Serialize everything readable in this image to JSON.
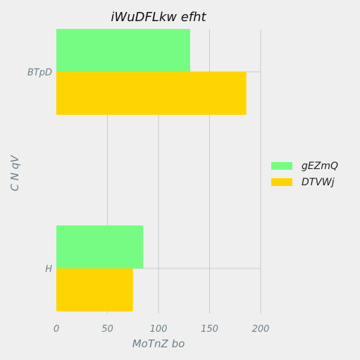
{
  "chart_data": {
    "type": "bar",
    "orientation": "horizontal",
    "title": "iWuDFLkw efht",
    "xlabel": "MoTnZ bo",
    "ylabel": "C  N qV",
    "categories": [
      "BTpD",
      "H"
    ],
    "series": [
      {
        "name": "gEZmQ",
        "color": "#77fc83",
        "values": [
          131,
          85
        ]
      },
      {
        "name": "DTVWj",
        "color": "#ffd500",
        "values": [
          186,
          75
        ]
      }
    ],
    "xlim": [
      0,
      200
    ],
    "xticks": [
      0,
      50,
      100,
      150,
      200
    ],
    "grid": true,
    "legend": "right"
  }
}
